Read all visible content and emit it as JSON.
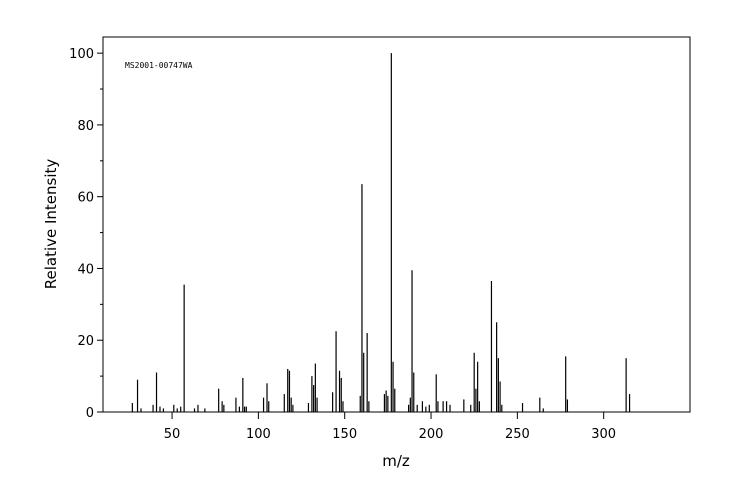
{
  "chart_data": {
    "type": "bar",
    "annotation": "MS2001-00747WA",
    "x_label": "m/z",
    "y_label": "Relative Intensity",
    "color": "#000000",
    "xlim": [
      10,
      350
    ],
    "ylim": [
      0,
      104.5
    ],
    "xticks": [
      50,
      100,
      150,
      200,
      250,
      300
    ],
    "yticks": [
      0,
      20,
      40,
      60,
      80,
      100
    ],
    "yminorticks": [
      10,
      30,
      50,
      70,
      90
    ],
    "x": [
      27,
      30,
      32,
      39,
      41,
      43,
      45,
      51,
      53,
      55,
      57,
      63,
      65,
      69,
      77,
      79,
      80,
      87,
      89,
      91,
      92,
      93,
      103,
      105,
      106,
      115,
      117,
      118,
      119,
      120,
      129,
      131,
      132,
      133,
      134,
      143,
      145,
      147,
      148,
      149,
      159,
      160,
      161,
      163,
      164,
      173,
      174,
      175,
      177,
      178,
      179,
      187,
      188,
      189,
      190,
      192,
      195,
      197,
      199,
      203,
      204,
      207,
      209,
      211,
      219,
      223,
      225,
      226,
      227,
      228,
      235,
      238,
      239,
      240,
      241,
      253,
      263,
      265,
      278,
      279,
      313,
      315
    ],
    "values": [
      2.5,
      9,
      1,
      2,
      11,
      1.5,
      1,
      2,
      1,
      1.5,
      35.5,
      1,
      2,
      1,
      6.5,
      3,
      2,
      4,
      1.5,
      9.5,
      1.5,
      1.5,
      4,
      8,
      3,
      5,
      12,
      11.5,
      4,
      2,
      2.5,
      10,
      7.5,
      13.5,
      4,
      5.5,
      22.5,
      11.5,
      9.5,
      3,
      4.5,
      63.5,
      16.5,
      22,
      3,
      5,
      6,
      4.5,
      100,
      14,
      6.5,
      2,
      4,
      39.5,
      11,
      2,
      3,
      1.5,
      2,
      10.5,
      3,
      3,
      3,
      2,
      3.5,
      2,
      16.5,
      6.5,
      14,
      3,
      36.5,
      25,
      15,
      8.5,
      2,
      2.5,
      4,
      1,
      15.5,
      3.5,
      15,
      5
    ]
  }
}
